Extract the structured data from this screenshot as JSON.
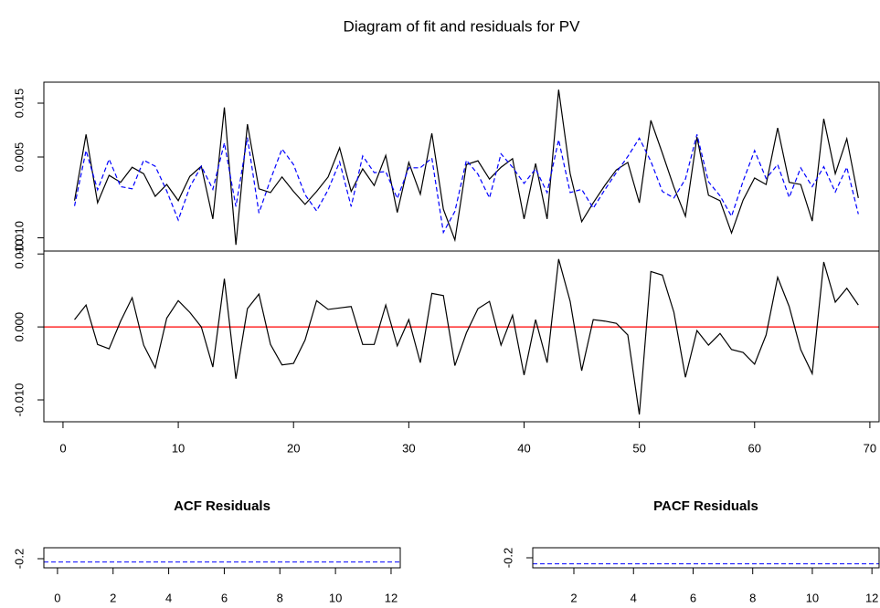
{
  "chart_data": [
    {
      "type": "line",
      "title": "Diagram of fit and residuals for PV",
      "x": [
        1,
        2,
        3,
        4,
        5,
        6,
        7,
        8,
        9,
        10,
        11,
        12,
        13,
        14,
        15,
        16,
        17,
        18,
        19,
        20,
        21,
        22,
        23,
        24,
        25,
        26,
        27,
        28,
        29,
        30,
        31,
        32,
        33,
        34,
        35,
        36,
        37,
        38,
        39,
        40,
        41,
        42,
        43,
        44,
        45,
        46,
        47,
        48,
        49,
        50,
        51,
        52,
        53,
        54,
        55,
        56,
        57,
        58,
        59,
        60,
        61,
        62,
        63,
        64,
        65,
        66,
        67,
        68,
        69
      ],
      "xlim": [
        -1.66,
        70.8
      ],
      "ylim": [
        -0.01246,
        0.0189
      ],
      "yticks": [
        0.015,
        0.005,
        {
          "value": -0.01,
          "label": "-0.010"
        }
      ],
      "series": [
        {
          "color": "#000000",
          "dash": false,
          "values": [
            -0.0031,
            0.0092,
            -0.0035,
            0.0016,
            0.0003,
            0.0031,
            0.0019,
            -0.0023,
            -0.0001,
            -0.0031,
            0.0014,
            0.0033,
            -0.0065,
            0.0142,
            -0.0113,
            0.0111,
            -0.0009,
            -0.0016,
            0.0013,
            -0.0014,
            -0.0038,
            -0.0014,
            0.0013,
            0.0067,
            -0.0014,
            0.0028,
            -0.0003,
            0.0053,
            -0.0053,
            0.004,
            -0.0019,
            0.0094,
            -0.0047,
            -0.0104,
            0.0036,
            0.0043,
            0.0009,
            0.0031,
            0.0047,
            -0.0065,
            0.0038,
            -0.0065,
            0.0175,
            0.0019,
            -0.007,
            -0.0035,
            -0.0003,
            0.0026,
            0.004,
            -0.0035,
            0.0118,
            0.0057,
            -0.0006,
            -0.006,
            0.0087,
            -0.0021,
            -0.0031,
            -0.0091,
            -0.003,
            0.0011,
            -0.0001,
            0.0104,
            0.0003,
            -0.0001,
            -0.0069,
            0.0121,
            0.0019,
            0.0084,
            -0.0026
          ]
        },
        {
          "color": "#0000ff",
          "dash": true,
          "values": [
            -0.0041,
            0.0062,
            -0.0011,
            0.0046,
            -0.0005,
            -0.0009,
            0.0044,
            0.0033,
            -0.0013,
            -0.0067,
            -0.0006,
            0.0033,
            -0.001,
            0.0076,
            -0.0042,
            0.0086,
            -0.0054,
            0.0008,
            0.0065,
            0.0036,
            -0.002,
            -0.005,
            -0.0011,
            0.0041,
            -0.0042,
            0.0052,
            0.0021,
            0.0023,
            -0.0027,
            0.003,
            0.003,
            0.0048,
            -0.009,
            -0.0051,
            0.0044,
            0.0018,
            -0.0026,
            0.0056,
            0.0031,
            0.0001,
            0.0028,
            -0.0016,
            0.0082,
            -0.0016,
            -0.001,
            -0.0045,
            -0.0011,
            0.0021,
            0.0051,
            0.0085,
            0.0042,
            -0.0014,
            -0.0026,
            0.0009,
            0.0092,
            0.0004,
            -0.0022,
            -0.006,
            0.0005,
            0.0062,
            0.001,
            0.0036,
            -0.0025,
            0.003,
            -0.0005,
            0.0032,
            -0.0015,
            0.0031,
            -0.0056
          ]
        }
      ]
    },
    {
      "type": "line",
      "x": [
        1,
        2,
        3,
        4,
        5,
        6,
        7,
        8,
        9,
        10,
        11,
        12,
        13,
        14,
        15,
        16,
        17,
        18,
        19,
        20,
        21,
        22,
        23,
        24,
        25,
        26,
        27,
        28,
        29,
        30,
        31,
        32,
        33,
        34,
        35,
        36,
        37,
        38,
        39,
        40,
        41,
        42,
        43,
        44,
        45,
        46,
        47,
        48,
        49,
        50,
        51,
        52,
        53,
        54,
        55,
        56,
        57,
        58,
        59,
        60,
        61,
        62,
        63,
        64,
        65,
        66,
        67,
        68,
        69
      ],
      "xlim": [
        -1.66,
        70.8
      ],
      "xticks": [
        0,
        10,
        20,
        30,
        40,
        50,
        60,
        70
      ],
      "ylim": [
        -0.013,
        0.0104
      ],
      "yticks": [
        {
          "value": 0.01,
          "label": "0.010"
        },
        {
          "value": 0,
          "label": "0.000"
        },
        {
          "value": -0.01,
          "label": "-0.010"
        }
      ],
      "hline": 0,
      "hline_color": "#ff0000",
      "color": "#000000",
      "values": [
        0.001,
        0.003,
        -0.0024,
        -0.003,
        0.0008,
        0.004,
        -0.0025,
        -0.0056,
        0.0012,
        0.0036,
        0.002,
        0,
        -0.0055,
        0.0066,
        -0.0071,
        0.0025,
        0.0045,
        -0.0024,
        -0.0052,
        -0.005,
        -0.0018,
        0.0036,
        0.0024,
        0.0026,
        0.0028,
        -0.0024,
        -0.0024,
        0.003,
        -0.0026,
        0.001,
        -0.0049,
        0.0046,
        0.0043,
        -0.0053,
        -0.0008,
        0.0025,
        0.0035,
        -0.0025,
        0.0016,
        -0.0066,
        0.001,
        -0.0049,
        0.0093,
        0.0035,
        -0.006,
        0.001,
        0.0008,
        0.0005,
        -0.0011,
        -0.012,
        0.0076,
        0.0071,
        0.002,
        -0.0069,
        -0.0005,
        -0.0025,
        -0.0009,
        -0.0031,
        -0.0035,
        -0.0051,
        -0.0011,
        0.0068,
        0.0028,
        -0.0031,
        -0.0064,
        0.0089,
        0.0034,
        0.0053,
        0.003
      ]
    },
    {
      "type": "acf",
      "title": "ACF Residuals",
      "xlim": [
        -0.49,
        12.33
      ],
      "xticks": [
        0,
        2,
        4,
        6,
        8,
        10,
        12
      ],
      "ylim": [
        -0.3,
        -0.08
      ],
      "yticks": [
        -0.2
      ],
      "ci": -0.236,
      "ci_color": "#0000ff"
    },
    {
      "type": "acf",
      "title": "PACF Residuals",
      "xlim": [
        0.62,
        12.24
      ],
      "xticks": [
        2,
        4,
        6,
        8,
        10,
        12
      ],
      "ylim": [
        -0.26,
        -0.14
      ],
      "yticks": [
        -0.2
      ],
      "ci": -0.236,
      "ci_color": "#0000ff"
    }
  ]
}
